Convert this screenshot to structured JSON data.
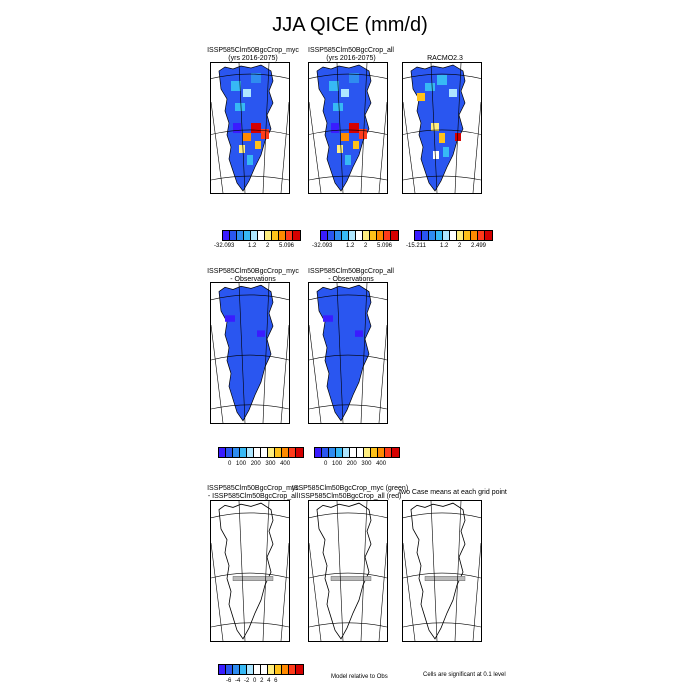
{
  "title": "JJA QICE (mm/d)",
  "row1": {
    "panels": [
      {
        "title1": "ISSP585Clm50BgcCrop_myc",
        "title2": "(yrs 2016-2075)"
      },
      {
        "title1": "ISSP585Clm50BgcCrop_all",
        "title2": "(yrs 2016-2075)"
      },
      {
        "title1": "RACMO2.3",
        "title2": ""
      }
    ],
    "colorbars": [
      {
        "min": "-32.093",
        "mid1": "1.2",
        "mid2": "2",
        "max": "5.096"
      },
      {
        "min": "-32.093",
        "mid1": "1.2",
        "mid2": "2",
        "max": "5.096"
      },
      {
        "min": "-15.211",
        "mid1": "1.2",
        "mid2": "2",
        "max": "2.499"
      }
    ]
  },
  "row2": {
    "panels": [
      {
        "title1": "ISSP585Clm50BgcCrop_myc",
        "title2": "- Observations"
      },
      {
        "title1": "ISSP585Clm50BgcCrop_all",
        "title2": "- Observations"
      }
    ],
    "colorbar_labels": [
      "0",
      "100",
      "200",
      "300",
      "400"
    ]
  },
  "row3": {
    "panels": [
      {
        "title1": "ISSP585Clm50BgcCrop_myc",
        "title2": "- ISSP585Clm50BgcCrop_all"
      },
      {
        "title1": "ISSP585Clm50BgcCrop_myc (green)",
        "title2": "ISSP585Clm50BgcCrop_all (red)"
      },
      {
        "title1": "two Case means at each grid point",
        "title2": ""
      }
    ],
    "colorbar_labels": [
      "-6",
      "-4",
      "-2",
      "0",
      "2",
      "4",
      "6"
    ],
    "note_model": "Model relative to Obs",
    "note_sig": "Cells are significant at 0.1 level"
  },
  "colors": {
    "scale": [
      "#3a1cff",
      "#2a56f0",
      "#2f8cf0",
      "#37b9f5",
      "#aee6ff",
      "#ffffff",
      "#ffee80",
      "#ffc21a",
      "#ff8a00",
      "#ff3b1a",
      "#d40000"
    ],
    "diverging": [
      "#3a1cff",
      "#2a56f0",
      "#2f8cf0",
      "#37b9f5",
      "#aee6ff",
      "#ffffff",
      "#ffffff",
      "#ffee80",
      "#ffc21a",
      "#ff8a00",
      "#ff3b1a",
      "#d40000"
    ]
  }
}
